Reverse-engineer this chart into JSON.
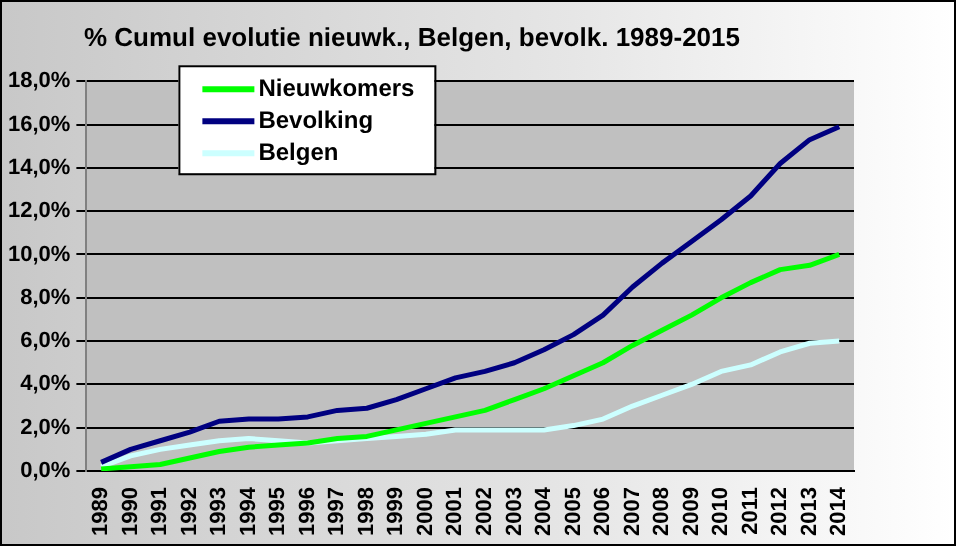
{
  "chart_data": {
    "type": "line",
    "title": "% Cumul evolutie nieuwk., Belgen, bevolk.  1989-2015",
    "categories": [
      "1989",
      "1990",
      "1991",
      "1992",
      "1993",
      "1994",
      "1995",
      "1996",
      "1997",
      "1998",
      "1999",
      "2000",
      "2001",
      "2002",
      "2003",
      "2004",
      "2005",
      "2006",
      "2007",
      "2008",
      "2009",
      "2010",
      "2011",
      "2012",
      "2013",
      "2014"
    ],
    "series": [
      {
        "name": "Nieuwkomers",
        "color": "#00ff00",
        "values": [
          0.1,
          0.2,
          0.3,
          0.6,
          0.9,
          1.1,
          1.2,
          1.3,
          1.5,
          1.6,
          1.9,
          2.2,
          2.5,
          2.8,
          3.3,
          3.8,
          4.4,
          5.0,
          5.8,
          6.5,
          7.2,
          8.0,
          8.7,
          9.3,
          9.5,
          10.0
        ]
      },
      {
        "name": "Bevolking",
        "color": "#000080",
        "values": [
          0.4,
          1.0,
          1.4,
          1.8,
          2.3,
          2.4,
          2.4,
          2.5,
          2.8,
          2.9,
          3.3,
          3.8,
          4.3,
          4.6,
          5.0,
          5.6,
          6.3,
          7.2,
          8.5,
          9.6,
          10.6,
          11.6,
          12.7,
          14.2,
          15.3,
          15.9
        ]
      },
      {
        "name": "Belgen",
        "color": "#ccffff",
        "values": [
          0.2,
          0.7,
          1.0,
          1.2,
          1.4,
          1.5,
          1.4,
          1.3,
          1.4,
          1.5,
          1.6,
          1.7,
          1.9,
          1.9,
          1.9,
          1.9,
          2.1,
          2.4,
          3.0,
          3.5,
          4.0,
          4.6,
          4.9,
          5.5,
          5.9,
          6.0
        ]
      }
    ],
    "ylim": [
      0,
      18
    ],
    "yticks": [
      {
        "value": 0,
        "label": "0,0%"
      },
      {
        "value": 2,
        "label": "2,0%"
      },
      {
        "value": 4,
        "label": "4,0%"
      },
      {
        "value": 6,
        "label": "6,0%"
      },
      {
        "value": 8,
        "label": "8,0%"
      },
      {
        "value": 10,
        "label": "10,0%"
      },
      {
        "value": 12,
        "label": "12,0%"
      },
      {
        "value": 14,
        "label": "14,0%"
      },
      {
        "value": 16,
        "label": "16,0%"
      },
      {
        "value": 18,
        "label": "18,0%"
      }
    ],
    "grid": "y",
    "legend": "top left",
    "marker": "none",
    "line_style": "solid"
  }
}
